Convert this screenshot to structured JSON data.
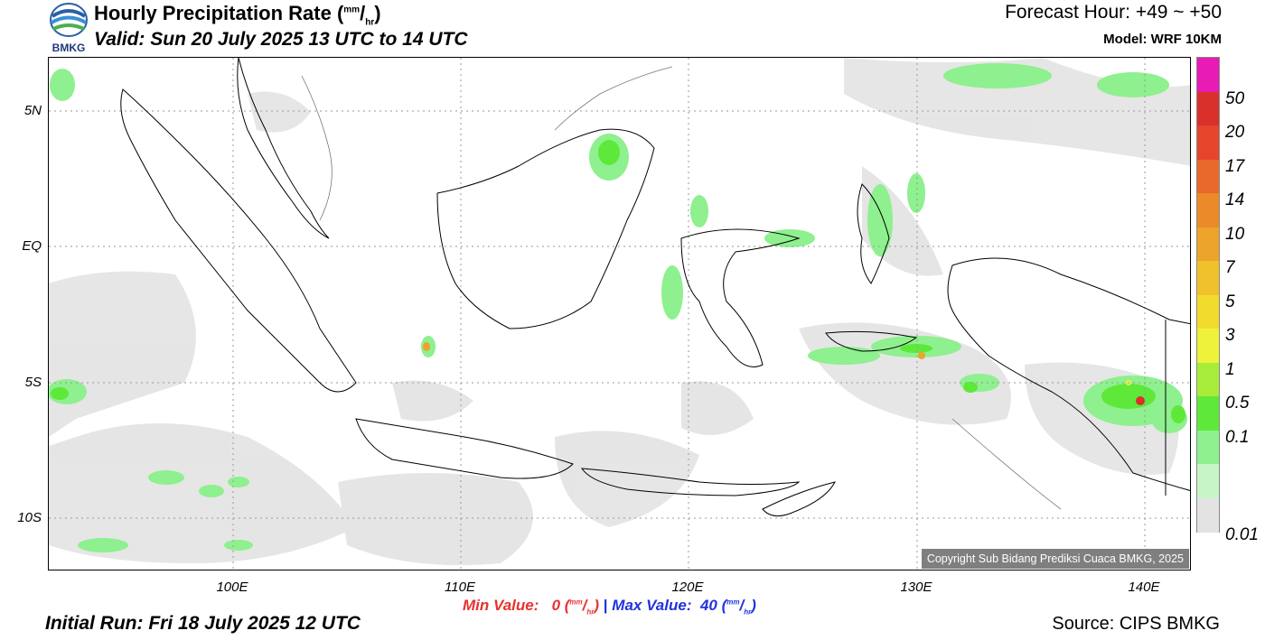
{
  "header": {
    "title_main": "Hourly Precipitation Rate (",
    "title_unit_num": "mm",
    "title_unit_den": "hr",
    "title_close": ")",
    "valid": "Valid: Sun 20 July 2025 13 UTC to 14 UTC",
    "forecast_hour": "Forecast Hour: +49 ~ +50",
    "model": "Model: WRF 10KM",
    "logo_text": "BMKG"
  },
  "axes": {
    "lat_labels": [
      "5N",
      "EQ",
      "5S",
      "10S"
    ],
    "lon_labels": [
      "100E",
      "110E",
      "120E",
      "130E",
      "140E"
    ]
  },
  "legend": {
    "labels": [
      "50",
      "20",
      "17",
      "14",
      "10",
      "7",
      "5",
      "3",
      "1",
      "0.5",
      "0.1",
      "0.01"
    ],
    "colors": [
      "#e81bb4",
      "#d9302c",
      "#e4452b",
      "#e8692a",
      "#ea8a28",
      "#eca42a",
      "#f0c12b",
      "#f1dc2d",
      "#eef23a",
      "#a8ec3a",
      "#5ee83a",
      "#8ef08e",
      "#c8f5c8",
      "#e3e3e3"
    ]
  },
  "footer": {
    "copyright": "Copyright Sub Bidang Prediksi Cuaca BMKG, 2025",
    "min_label": "Min Value:",
    "min_value": "0",
    "max_label": "Max Value:",
    "max_value": "40",
    "unit_num": "mm",
    "unit_den": "hr",
    "separator": "|",
    "initial_run": "Initial Run: Fri 18 July 2025 12 UTC",
    "source": "Source: CIPS BMKG"
  },
  "map_style": {
    "land_outline": "#000000",
    "rain_light": "#e3e3e3",
    "rain_green": "#8ef08e",
    "rain_strong": "#5ee83a",
    "hotspot": "#d9302c"
  }
}
